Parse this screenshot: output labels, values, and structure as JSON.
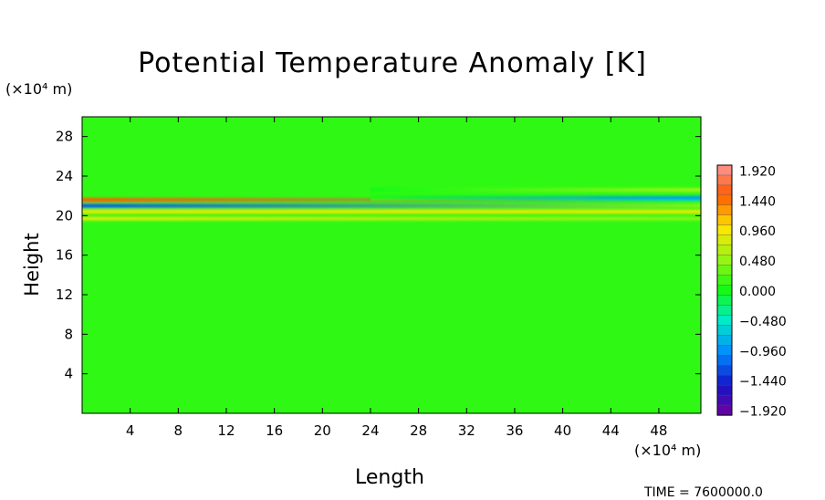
{
  "chart_data": {
    "type": "heatmap",
    "title": "Potential Temperature Anomaly [K]",
    "xlabel": "Length",
    "ylabel": "Height",
    "x_unit": "(×10⁴ m)",
    "y_unit": "(×10⁴ m)",
    "xlim": [
      0,
      51.5
    ],
    "ylim": [
      0,
      30
    ],
    "x_ticks": [
      "4",
      "8",
      "12",
      "16",
      "20",
      "24",
      "28",
      "32",
      "36",
      "40",
      "44",
      "48"
    ],
    "x_tick_values": [
      4,
      8,
      12,
      16,
      20,
      24,
      28,
      32,
      36,
      40,
      44,
      48
    ],
    "y_ticks": [
      "4",
      "8",
      "12",
      "16",
      "20",
      "24",
      "28"
    ],
    "y_tick_values": [
      4,
      8,
      12,
      16,
      20,
      24,
      28
    ],
    "colorbar": {
      "min": -2.0,
      "max": 2.0,
      "labels": [
        "1.920",
        "1.440",
        "0.960",
        "0.480",
        "0.000",
        "−0.480",
        "−0.960",
        "−1.440",
        "−1.920"
      ],
      "label_values": [
        1.92,
        1.44,
        0.96,
        0.48,
        0.0,
        -0.48,
        -0.96,
        -1.44,
        -1.92
      ]
    },
    "bands": [
      {
        "x_start": 0,
        "x_end": 51.5,
        "y": 21.6,
        "amp_start": 1.5,
        "amp_end": -0.2
      },
      {
        "x_start": 0,
        "x_end": 51.5,
        "y": 21.0,
        "amp_start": -1.2,
        "amp_end": 0.4
      },
      {
        "x_start": 0,
        "x_end": 51.5,
        "y": 20.4,
        "amp_start": 0.9,
        "amp_end": 0.9
      },
      {
        "x_start": 0,
        "x_end": 51.5,
        "y": 19.7,
        "amp_start": 0.8,
        "amp_end": 0.4
      },
      {
        "x_start": 24,
        "x_end": 51.5,
        "y": 21.8,
        "amp_start": 0.0,
        "amp_end": -0.9
      },
      {
        "x_start": 24,
        "x_end": 51.5,
        "y": 22.6,
        "amp_start": 0.0,
        "amp_end": 0.5
      }
    ],
    "footer": "TIME = 7600000.0"
  }
}
